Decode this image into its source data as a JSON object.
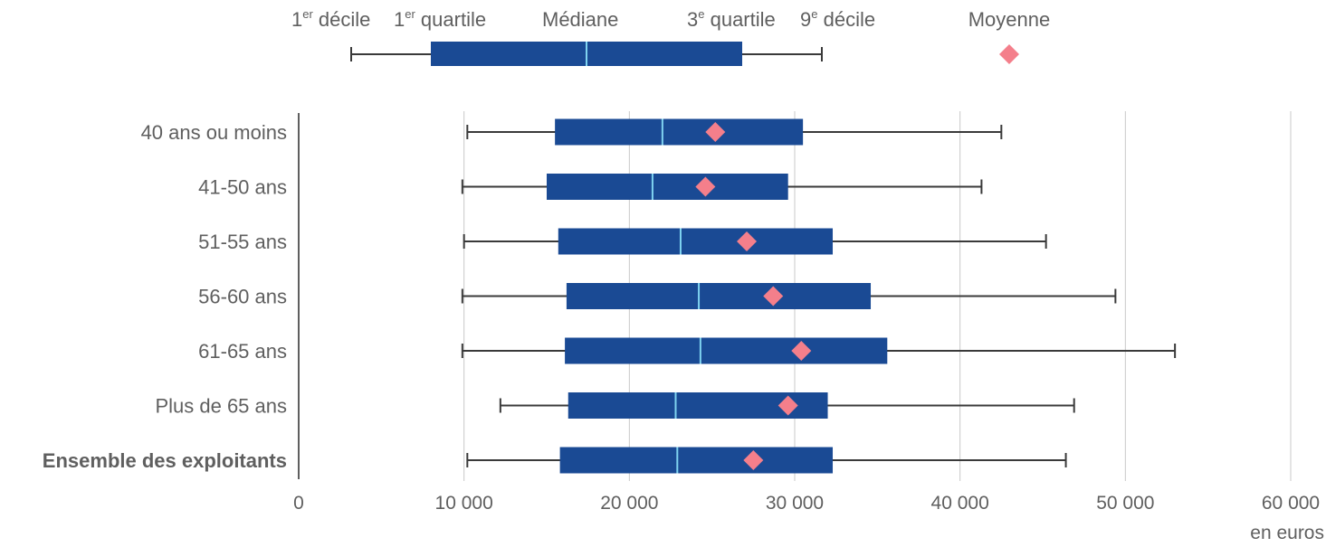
{
  "legend": {
    "d1": {
      "base": "1",
      "sup": "er",
      "rest": " décile"
    },
    "q1": {
      "base": "1",
      "sup": "er",
      "rest": " quartile"
    },
    "median": "Médiane",
    "q3": {
      "base": "3",
      "sup": "e",
      "rest": " quartile"
    },
    "d9": {
      "base": "9",
      "sup": "e",
      "rest": " décile"
    },
    "mean": "Moyenne"
  },
  "colors": {
    "box": "#1a4a94",
    "median_line": "#7fd3f0",
    "mean_marker": "#f47f8b",
    "whisker": "#3a3a3a",
    "grid": "#c8c8c8",
    "text": "#5f5f5f"
  },
  "chart_data": {
    "type": "boxplot",
    "orientation": "horizontal",
    "xlim": [
      0,
      60000
    ],
    "xticks": [
      0,
      10000,
      20000,
      30000,
      40000,
      50000,
      60000
    ],
    "xtick_labels": [
      "0",
      "10 000",
      "20 000",
      "30 000",
      "40 000",
      "50 000",
      "60 000"
    ],
    "xlabel": "en euros",
    "grid": "vertical",
    "categories": [
      {
        "label": "40 ans ou moins",
        "bold": false,
        "d1": 10200,
        "q1": 15500,
        "median": 22000,
        "q3": 30500,
        "d9": 42500,
        "mean": 25200
      },
      {
        "label": "41-50 ans",
        "bold": false,
        "d1": 9900,
        "q1": 15000,
        "median": 21400,
        "q3": 29600,
        "d9": 41300,
        "mean": 24600
      },
      {
        "label": "51-55 ans",
        "bold": false,
        "d1": 10000,
        "q1": 15700,
        "median": 23100,
        "q3": 32300,
        "d9": 45200,
        "mean": 27100
      },
      {
        "label": "56-60 ans",
        "bold": false,
        "d1": 9900,
        "q1": 16200,
        "median": 24200,
        "q3": 34600,
        "d9": 49400,
        "mean": 28700
      },
      {
        "label": "61-65 ans",
        "bold": false,
        "d1": 9900,
        "q1": 16100,
        "median": 24300,
        "q3": 35600,
        "d9": 53000,
        "mean": 30400
      },
      {
        "label": "Plus de 65 ans",
        "bold": false,
        "d1": 12200,
        "q1": 16300,
        "median": 22800,
        "q3": 32000,
        "d9": 46900,
        "mean": 29600
      },
      {
        "label": "Ensemble des exploitants",
        "bold": true,
        "d1": 10200,
        "q1": 15800,
        "median": 22900,
        "q3": 32300,
        "d9": 46400,
        "mean": 27500
      }
    ]
  }
}
